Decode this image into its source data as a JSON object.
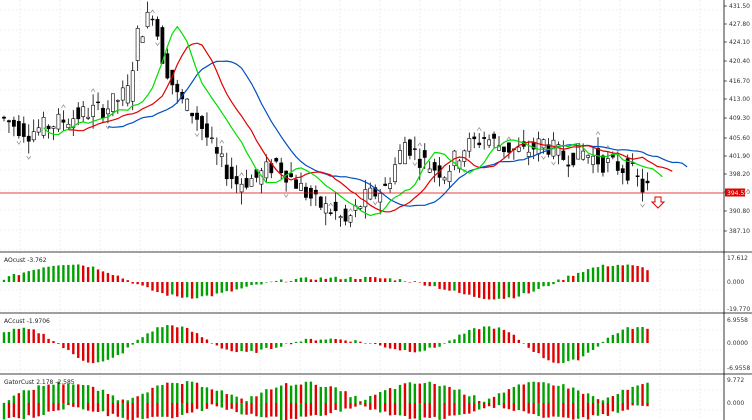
{
  "main_pane": {
    "price_axis_labels": [
      "431.50",
      "427.80",
      "424.10",
      "420.40",
      "416.70",
      "413.00",
      "409.30",
      "405.60",
      "401.90",
      "398.20",
      "394.50",
      "390.80",
      "387.10"
    ],
    "current_price": "394.55",
    "colors": {
      "bull": "#000000",
      "bear": "#000000",
      "ma_fast": "#00dd00",
      "ma_mid": "#e00000",
      "ma_slow": "#0050c0",
      "price_line": "#e00000",
      "arrow": "#e00000"
    }
  },
  "indicators": [
    {
      "name": "ao-pane",
      "title": "AOcust -3.762",
      "axis_labels": [
        "17.612",
        "0.000",
        "-19.770"
      ],
      "colors": {
        "up": "#00a000",
        "down": "#e00000"
      }
    },
    {
      "name": "ac-pane",
      "title": "ACcust -1.9706",
      "axis_labels": [
        "6.9558",
        "0.0000",
        "-6.9558"
      ],
      "colors": {
        "up": "#00a000",
        "down": "#e00000"
      }
    },
    {
      "name": "gator-pane",
      "title": "GatorCust 2.178 -2.585",
      "axis_labels": [
        "9.772",
        "0.000"
      ],
      "colors": {
        "up": "#00a000",
        "down": "#e00000"
      }
    }
  ]
}
